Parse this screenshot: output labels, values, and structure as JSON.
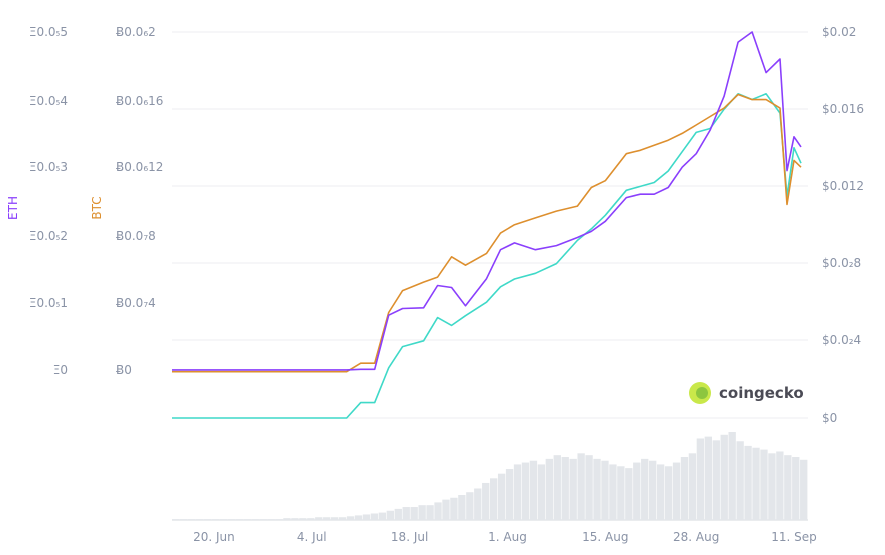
{
  "chart_data": {
    "type": "line",
    "watermark": "coingecko",
    "colors": {
      "eth": "#8a3ffc",
      "btc": "#dd8f2e",
      "usd": "#3fd9c8",
      "volume": "#e3e6ea",
      "grid": "#eceef1",
      "tick": "#8a93a6"
    },
    "x_ticks": [
      "20. Jun",
      "4. Jul",
      "18. Jul",
      "1. Aug",
      "15. Aug",
      "28. Aug",
      "11. Sep"
    ],
    "axes": {
      "eth": {
        "label": "ETH",
        "ticks": [
          "Ξ0.0₅5",
          "Ξ0.0₅4",
          "Ξ0.0₅3",
          "Ξ0.0₅2",
          "Ξ0.0₅1",
          "Ξ0"
        ]
      },
      "btc": {
        "label": "BTC",
        "ticks": [
          "Ƀ0.0₆2",
          "Ƀ0.0₆16",
          "Ƀ0.0₆12",
          "Ƀ0.0₇8",
          "Ƀ0.0₇4",
          "Ƀ0"
        ]
      },
      "usd": {
        "ticks": [
          "$0.02",
          "$0.016",
          "$0.012",
          "$0.0₂8",
          "$0.0₂4",
          "$0"
        ]
      }
    },
    "series": [
      {
        "name": "ETH",
        "axis": "eth",
        "x": [
          "Jun 14",
          "Jun 20",
          "Jun 27",
          "Jul 4",
          "Jul 9",
          "Jul 11",
          "Jul 13",
          "Jul 15",
          "Jul 17",
          "Jul 20",
          "Jul 22",
          "Jul 24",
          "Jul 26",
          "Jul 29",
          "Jul 31",
          "Aug 2",
          "Aug 5",
          "Aug 8",
          "Aug 11",
          "Aug 13",
          "Aug 15",
          "Aug 18",
          "Aug 20",
          "Aug 22",
          "Aug 24",
          "Aug 26",
          "Aug 28",
          "Aug 30",
          "Sep 1",
          "Sep 3",
          "Sep 5",
          "Sep 7",
          "Sep 9",
          "Sep 10",
          "Sep 11",
          "Sep 12"
        ],
        "y": [
          1e-09,
          1e-09,
          1e-09,
          1e-09,
          1e-09,
          1e-08,
          1e-08,
          8.1e-07,
          9.1e-07,
          9.2e-07,
          1.25e-06,
          1.22e-06,
          9.5e-07,
          1.35e-06,
          1.78e-06,
          1.88e-06,
          1.78e-06,
          1.84e-06,
          1.96e-06,
          2.05e-06,
          2.2e-06,
          2.55e-06,
          2.6e-06,
          2.6e-06,
          2.7e-06,
          3e-06,
          3.2e-06,
          3.55e-06,
          4.05e-06,
          4.85e-06,
          5e-06,
          4.4e-06,
          4.6e-06,
          2.95e-06,
          3.45e-06,
          3.3e-06
        ]
      },
      {
        "name": "BTC",
        "axis": "btc",
        "x": [
          "Jun 14",
          "Jun 20",
          "Jun 27",
          "Jul 4",
          "Jul 9",
          "Jul 11",
          "Jul 13",
          "Jul 15",
          "Jul 17",
          "Jul 20",
          "Jul 22",
          "Jul 24",
          "Jul 26",
          "Jul 29",
          "Jul 31",
          "Aug 2",
          "Aug 5",
          "Aug 8",
          "Aug 11",
          "Aug 13",
          "Aug 15",
          "Aug 18",
          "Aug 20",
          "Aug 22",
          "Aug 24",
          "Aug 26",
          "Aug 28",
          "Aug 30",
          "Sep 1",
          "Sep 3",
          "Sep 5",
          "Sep 7",
          "Sep 9",
          "Sep 10",
          "Sep 11",
          "Sep 12"
        ],
        "y": [
          -1e-09,
          -1e-09,
          -1e-09,
          -1e-09,
          -1e-09,
          4e-09,
          4e-09,
          3.4e-08,
          4.7e-08,
          5.2e-08,
          5.5e-08,
          6.7e-08,
          6.2e-08,
          6.9e-08,
          8.1e-08,
          8.6e-08,
          9e-08,
          9.4e-08,
          9.7e-08,
          1.08e-07,
          1.12e-07,
          1.28e-07,
          1.3e-07,
          1.33e-07,
          1.36e-07,
          1.4e-07,
          1.45e-07,
          1.5e-07,
          1.55e-07,
          1.63e-07,
          1.6e-07,
          1.6e-07,
          1.55e-07,
          9.8e-08,
          1.24e-07,
          1.2e-07
        ]
      },
      {
        "name": "USD",
        "axis": "usd",
        "x": [
          "Jun 14",
          "Jun 20",
          "Jun 27",
          "Jul 4",
          "Jul 9",
          "Jul 11",
          "Jul 13",
          "Jul 15",
          "Jul 17",
          "Jul 20",
          "Jul 22",
          "Jul 24",
          "Jul 26",
          "Jul 29",
          "Jul 31",
          "Aug 2",
          "Aug 5",
          "Aug 8",
          "Aug 11",
          "Aug 13",
          "Aug 15",
          "Aug 18",
          "Aug 20",
          "Aug 22",
          "Aug 24",
          "Aug 26",
          "Aug 28",
          "Aug 30",
          "Sep 1",
          "Sep 3",
          "Sep 5",
          "Sep 7",
          "Sep 9",
          "Sep 10",
          "Sep 11",
          "Sep 12"
        ],
        "y": [
          0.0,
          0.0,
          0.0,
          0.0,
          0.0,
          0.0008,
          0.0008,
          0.0026,
          0.0037,
          0.004,
          0.0052,
          0.0048,
          0.0053,
          0.006,
          0.0068,
          0.0072,
          0.0075,
          0.008,
          0.0092,
          0.0098,
          0.0105,
          0.0118,
          0.012,
          0.0122,
          0.0128,
          0.0138,
          0.0148,
          0.015,
          0.016,
          0.0168,
          0.0165,
          0.0168,
          0.0158,
          0.0115,
          0.014,
          0.0132
        ]
      }
    ],
    "volume": [
      1,
      1,
      1,
      1,
      1,
      1,
      1,
      1,
      1,
      1,
      1,
      1,
      1,
      1,
      2,
      2,
      2,
      2,
      3,
      3,
      3,
      3,
      4,
      5,
      6,
      7,
      8,
      10,
      12,
      14,
      14,
      16,
      16,
      19,
      22,
      24,
      27,
      30,
      34,
      40,
      45,
      50,
      55,
      60,
      62,
      64,
      60,
      66,
      70,
      68,
      66,
      72,
      70,
      66,
      64,
      60,
      58,
      56,
      62,
      66,
      64,
      60,
      58,
      62,
      68,
      72,
      88,
      90,
      86,
      92,
      95,
      85,
      80,
      78,
      76,
      72,
      74,
      70,
      68,
      65
    ]
  }
}
